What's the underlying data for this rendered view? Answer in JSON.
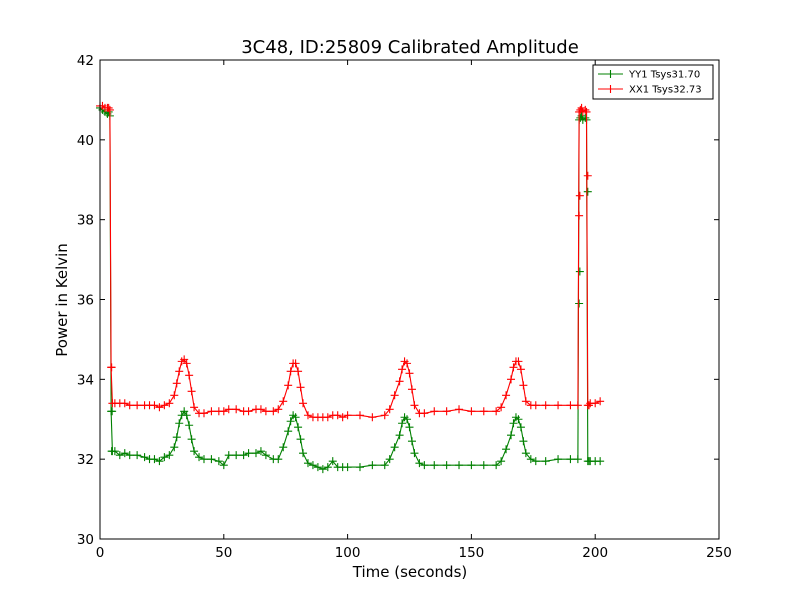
{
  "chart_data": {
    "type": "line",
    "title": "3C48, ID:25809 Calibrated Amplitude",
    "xlabel": "Time (seconds)",
    "ylabel": "Power in Kelvin",
    "xlim": [
      0,
      250
    ],
    "ylim": [
      30,
      42
    ],
    "xticks": [
      "0",
      "50",
      "100",
      "150",
      "200",
      "250"
    ],
    "yticks": [
      "30",
      "32",
      "34",
      "36",
      "38",
      "40",
      "42"
    ],
    "grid": false,
    "legend_position": "top-right",
    "marker": "+",
    "series": [
      {
        "name": "YY1 Tsys31.70",
        "color": "#008000",
        "x": [
          0,
          1,
          2,
          3,
          3.5,
          4,
          4.5,
          5,
          6,
          8,
          10,
          12,
          15,
          18,
          20,
          22,
          24,
          26,
          28,
          30,
          31,
          32,
          33,
          34,
          35,
          36,
          37,
          38,
          40,
          42,
          45,
          48,
          50,
          52,
          55,
          58,
          60,
          63,
          65,
          67,
          70,
          72,
          74,
          76,
          77,
          78,
          79,
          80,
          81,
          82,
          84,
          86,
          88,
          90,
          92,
          94,
          96,
          98,
          100,
          105,
          110,
          115,
          117,
          119,
          121,
          122,
          123,
          124,
          125,
          126,
          127,
          129,
          131,
          135,
          140,
          145,
          150,
          155,
          160,
          162,
          164,
          166,
          167,
          168,
          169,
          170,
          171,
          172,
          174,
          176,
          180,
          185,
          190,
          193,
          193.5,
          194,
          194.5,
          195,
          196,
          196.5,
          197,
          197.5,
          198,
          200,
          202
        ],
        "y": [
          40.8,
          40.75,
          40.7,
          40.65,
          40.7,
          40.6,
          33.2,
          32.2,
          32.2,
          32.1,
          32.15,
          32.1,
          32.1,
          32.05,
          32.0,
          32.0,
          31.95,
          32.05,
          32.1,
          32.3,
          32.55,
          32.9,
          33.1,
          33.2,
          33.1,
          32.85,
          32.5,
          32.2,
          32.05,
          32.0,
          32.0,
          31.95,
          31.85,
          32.1,
          32.1,
          32.1,
          32.15,
          32.15,
          32.2,
          32.1,
          32.0,
          32.0,
          32.3,
          32.7,
          32.95,
          33.1,
          33.05,
          32.8,
          32.5,
          32.15,
          31.9,
          31.85,
          31.8,
          31.75,
          31.8,
          31.95,
          31.8,
          31.8,
          31.8,
          31.8,
          31.85,
          31.85,
          32.0,
          32.3,
          32.6,
          32.9,
          33.05,
          33.0,
          32.8,
          32.45,
          32.15,
          31.9,
          31.85,
          31.85,
          31.85,
          31.85,
          31.85,
          31.85,
          31.85,
          31.95,
          32.25,
          32.6,
          32.9,
          33.05,
          33.0,
          32.8,
          32.45,
          32.15,
          32.0,
          31.95,
          31.95,
          32.0,
          32.0,
          32.0,
          40.5,
          40.55,
          40.6,
          40.5,
          40.55,
          40.5,
          31.95,
          31.95,
          31.95,
          31.95,
          31.95
        ],
        "spikes": [
          [
            4.7,
            32.2
          ],
          [
            4.9,
            33.2
          ],
          [
            193.5,
            35.9
          ],
          [
            193.8,
            36.7
          ],
          [
            197,
            38.7
          ]
        ]
      },
      {
        "name": "XX1 Tsys32.73",
        "color": "#ff0000",
        "x": [
          0,
          1,
          2,
          3,
          3.5,
          4,
          4.5,
          5,
          6,
          8,
          10,
          12,
          15,
          18,
          20,
          22,
          24,
          26,
          28,
          30,
          31,
          32,
          33,
          34,
          35,
          36,
          37,
          38,
          40,
          42,
          45,
          48,
          50,
          52,
          55,
          58,
          60,
          63,
          65,
          67,
          70,
          72,
          74,
          76,
          77,
          78,
          79,
          80,
          81,
          82,
          84,
          86,
          88,
          90,
          92,
          94,
          96,
          98,
          100,
          105,
          110,
          115,
          117,
          119,
          121,
          122,
          123,
          124,
          125,
          126,
          127,
          129,
          131,
          135,
          140,
          145,
          150,
          155,
          160,
          162,
          164,
          166,
          167,
          168,
          169,
          170,
          171,
          172,
          174,
          176,
          180,
          185,
          190,
          193,
          193.5,
          194,
          194.5,
          195,
          196,
          196.5,
          197,
          197.5,
          198,
          200,
          202
        ],
        "y": [
          40.85,
          40.85,
          40.8,
          40.8,
          40.8,
          40.75,
          34.3,
          33.4,
          33.4,
          33.4,
          33.4,
          33.35,
          33.35,
          33.35,
          33.35,
          33.35,
          33.3,
          33.35,
          33.4,
          33.6,
          33.9,
          34.2,
          34.45,
          34.5,
          34.4,
          34.1,
          33.7,
          33.3,
          33.15,
          33.15,
          33.2,
          33.2,
          33.2,
          33.25,
          33.25,
          33.2,
          33.2,
          33.25,
          33.25,
          33.2,
          33.2,
          33.25,
          33.45,
          33.85,
          34.2,
          34.4,
          34.4,
          34.2,
          33.8,
          33.4,
          33.1,
          33.05,
          33.05,
          33.05,
          33.05,
          33.1,
          33.1,
          33.05,
          33.1,
          33.1,
          33.05,
          33.1,
          33.25,
          33.6,
          33.95,
          34.25,
          34.45,
          34.4,
          34.15,
          33.75,
          33.35,
          33.15,
          33.15,
          33.2,
          33.2,
          33.25,
          33.2,
          33.2,
          33.2,
          33.3,
          33.6,
          34.0,
          34.3,
          34.45,
          34.45,
          34.25,
          33.85,
          33.45,
          33.35,
          33.35,
          33.35,
          33.35,
          33.35,
          33.35,
          40.7,
          40.75,
          40.8,
          40.7,
          40.75,
          40.7,
          33.35,
          33.35,
          33.4,
          33.4,
          33.45
        ],
        "spikes": [
          [
            4.7,
            34.3
          ],
          [
            193.5,
            38.1
          ],
          [
            193.8,
            38.6
          ],
          [
            197,
            39.1
          ]
        ]
      }
    ]
  }
}
